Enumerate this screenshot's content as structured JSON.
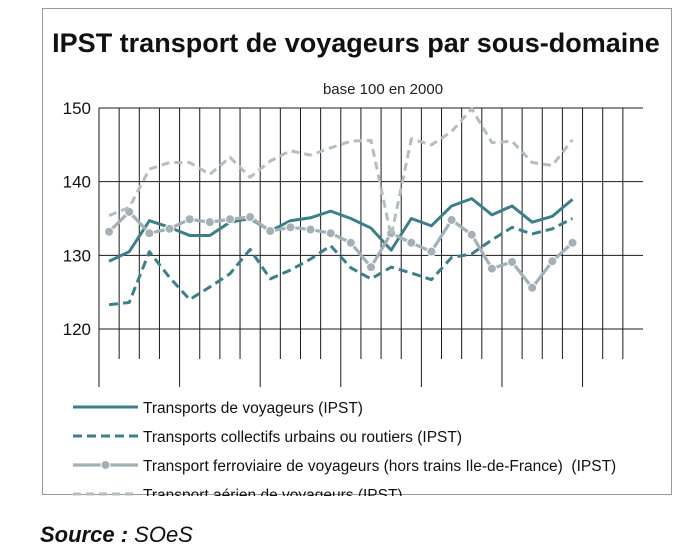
{
  "chart_data": {
    "type": "line",
    "title": "IPST transport de voyageurs par sous-domaine",
    "subtitle": "base 100 en 2000",
    "ylim": [
      120,
      150
    ],
    "yticks": [
      120,
      130,
      140,
      150
    ],
    "grid": true,
    "legend_position": "bottom",
    "x": [
      1,
      2,
      3,
      4,
      5,
      6,
      7,
      8,
      9,
      10,
      11,
      12,
      13,
      14,
      15,
      16,
      17,
      18,
      19,
      20,
      21,
      22,
      23,
      24,
      25,
      26,
      27
    ],
    "series": [
      {
        "name": "Transports de voyageurs (IPST)",
        "color": "#3c7f8b",
        "style": "solid",
        "values": [
          129.2,
          130.5,
          134.7,
          133.8,
          132.7,
          132.7,
          134.5,
          135.0,
          133.3,
          134.7,
          135.1,
          136.0,
          135.0,
          133.7,
          130.7,
          135.0,
          134.0,
          136.7,
          137.7,
          135.5,
          136.7,
          134.5,
          135.3,
          137.6,
          null,
          null,
          null
        ]
      },
      {
        "name": "Transports collectifs urbains ou routiers (IPST)",
        "color": "#3c7f8b",
        "style": "dashed",
        "values": [
          123.3,
          123.6,
          130.5,
          127.0,
          124.0,
          125.7,
          127.5,
          130.8,
          126.8,
          128.0,
          129.5,
          131.3,
          128.3,
          126.8,
          128.4,
          127.6,
          126.7,
          129.7,
          130.2,
          132.1,
          133.8,
          132.9,
          133.6,
          135.0,
          null,
          null,
          null
        ]
      },
      {
        "name": "Transport ferroviaire de voyageurs (hors trains Ile-de-France)  (IPST)",
        "color": "#a3b0b6",
        "style": "solid-marker",
        "values": [
          133.2,
          135.9,
          133.0,
          133.6,
          134.9,
          134.5,
          134.9,
          135.2,
          133.3,
          133.8,
          133.5,
          133.0,
          131.7,
          128.4,
          133.0,
          131.7,
          130.5,
          134.8,
          132.8,
          128.2,
          129.1,
          125.6,
          129.2,
          131.7,
          null,
          null,
          null
        ]
      },
      {
        "name": "Transport aérien de voyageurs (IPST)",
        "color": "#b3bec3",
        "style": "dashed",
        "values": [
          135.4,
          136.5,
          141.7,
          142.6,
          142.6,
          141.0,
          143.3,
          140.6,
          142.8,
          144.2,
          143.6,
          144.6,
          145.5,
          145.6,
          132.6,
          145.8,
          145.0,
          146.8,
          149.9,
          145.3,
          145.5,
          142.6,
          142.2,
          145.7,
          null,
          null,
          null
        ]
      }
    ]
  },
  "source": {
    "label": "Source :",
    "value": "SOeS"
  }
}
